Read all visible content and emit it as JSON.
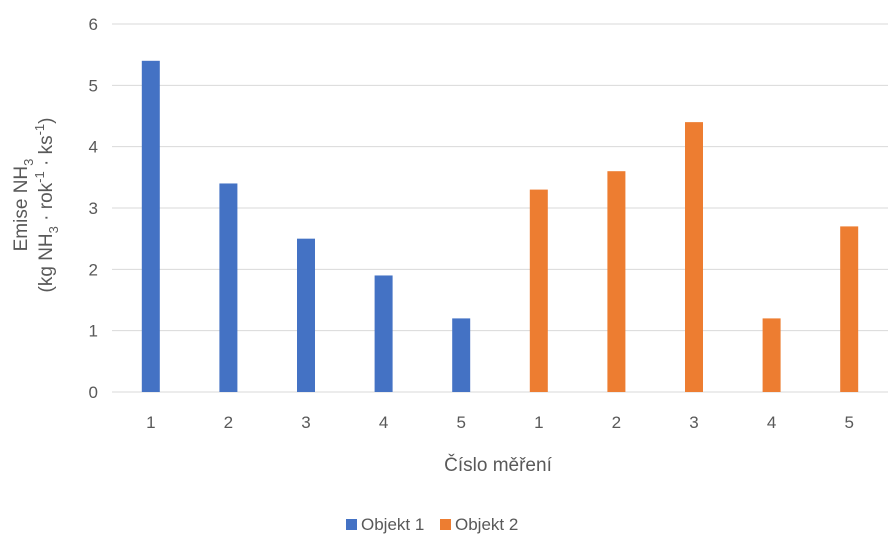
{
  "chart_data": {
    "type": "bar",
    "categories": [
      "1",
      "2",
      "3",
      "4",
      "5",
      "1",
      "2",
      "3",
      "4",
      "5"
    ],
    "series": [
      {
        "name": "Objekt 1",
        "color": "#4472C4",
        "values": [
          5.4,
          3.4,
          2.5,
          1.9,
          1.2,
          null,
          null,
          null,
          null,
          null
        ]
      },
      {
        "name": "Objekt 2",
        "color": "#ED7D31",
        "values": [
          null,
          null,
          null,
          null,
          null,
          3.3,
          3.6,
          4.4,
          1.2,
          2.7
        ]
      }
    ],
    "xlabel": "Číslo měření",
    "ylabel": {
      "line1_main": "Emise NH",
      "line1_sub": "3",
      "line2_a": "(kg NH",
      "line2_sub": "3",
      "line2_b": " · rok",
      "line2_sup1": "-1",
      "line2_c": " · ks",
      "line2_sup2": "-1",
      "line2_d": ")"
    },
    "ylim": [
      0,
      6
    ],
    "yticks": [
      0,
      1,
      2,
      3,
      4,
      5,
      6
    ],
    "grid": true,
    "legend_position": "bottom"
  }
}
